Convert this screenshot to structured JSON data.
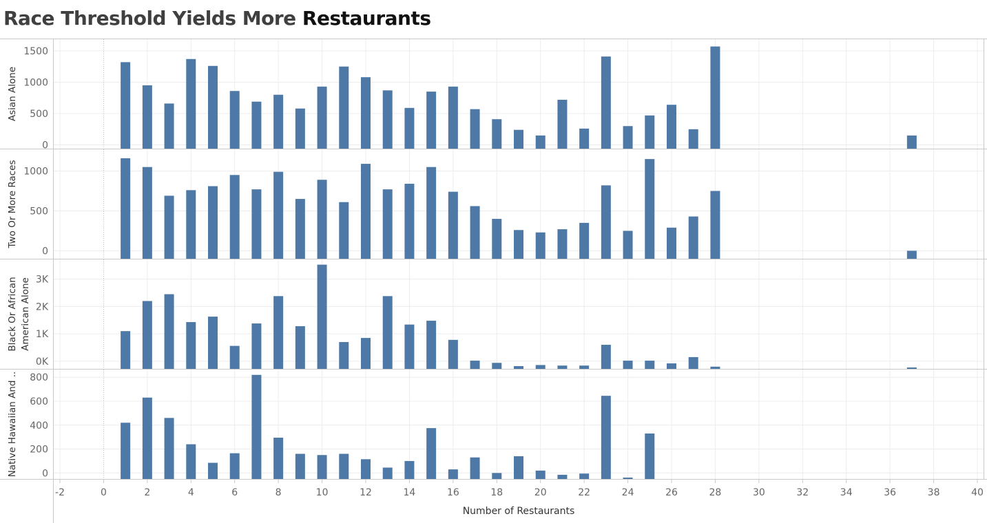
{
  "title": {
    "prefix": "Race Threshold Yields More ",
    "suffix": "Restaurants"
  },
  "colors": {
    "bar": "#4e79a7",
    "grid": "#ececec",
    "frame": "#c8c8c8"
  },
  "chart_data": {
    "type": "bar",
    "title": "Race Threshold Yields More Restaurants",
    "xlabel": "Number of Restaurants",
    "xlim": [
      -2,
      40
    ],
    "x_ticks": [
      "-2",
      "0",
      "2",
      "4",
      "6",
      "8",
      "10",
      "12",
      "14",
      "16",
      "18",
      "20",
      "22",
      "24",
      "26",
      "28",
      "30",
      "32",
      "34",
      "36",
      "38",
      "40"
    ],
    "grid": true,
    "panes": [
      {
        "ylabel": [
          "Asian Alone"
        ],
        "ylim": [
          -60,
          1620
        ],
        "y_ticks": [
          {
            "v": 1500,
            "t": "1500"
          },
          {
            "v": 1000,
            "t": "1000"
          },
          {
            "v": 500,
            "t": "500"
          },
          {
            "v": 0,
            "t": "0"
          }
        ],
        "x": [
          1,
          2,
          3,
          4,
          5,
          6,
          7,
          8,
          9,
          10,
          11,
          12,
          13,
          14,
          15,
          16,
          17,
          18,
          19,
          20,
          21,
          22,
          23,
          24,
          25,
          26,
          27,
          28,
          37
        ],
        "values": [
          1320,
          950,
          660,
          1370,
          1260,
          860,
          690,
          800,
          580,
          930,
          1250,
          1080,
          870,
          590,
          850,
          930,
          570,
          410,
          240,
          150,
          720,
          260,
          1410,
          300,
          470,
          640,
          250,
          1570,
          150
        ]
      },
      {
        "ylabel": [
          "Two Or More Races"
        ],
        "ylim": [
          -100,
          1220
        ],
        "y_ticks": [
          {
            "v": 1000,
            "t": "1000"
          },
          {
            "v": 500,
            "t": "500"
          },
          {
            "v": 0,
            "t": "0"
          }
        ],
        "x": [
          1,
          2,
          3,
          4,
          5,
          6,
          7,
          8,
          9,
          10,
          11,
          12,
          13,
          14,
          15,
          16,
          17,
          18,
          19,
          20,
          21,
          22,
          23,
          24,
          25,
          26,
          27,
          28,
          37
        ],
        "values": [
          1160,
          1050,
          690,
          760,
          810,
          950,
          770,
          990,
          650,
          890,
          610,
          1090,
          770,
          840,
          1050,
          740,
          560,
          400,
          260,
          230,
          270,
          350,
          820,
          250,
          1150,
          290,
          430,
          750,
          0
        ]
      },
      {
        "ylabel": [
          "Black Or African",
          "American Alone"
        ],
        "ylim": [
          -280,
          3570
        ],
        "y_ticks": [
          {
            "v": 3000,
            "t": "3K"
          },
          {
            "v": 2000,
            "t": "2K"
          },
          {
            "v": 1000,
            "t": "1K"
          },
          {
            "v": 0,
            "t": "0K"
          }
        ],
        "x": [
          1,
          2,
          3,
          4,
          5,
          6,
          7,
          8,
          9,
          10,
          11,
          12,
          13,
          14,
          15,
          16,
          17,
          18,
          19,
          20,
          21,
          22,
          23,
          24,
          25,
          26,
          27,
          28,
          37
        ],
        "values": [
          1100,
          2200,
          2450,
          1430,
          1630,
          560,
          1380,
          2380,
          1280,
          3530,
          700,
          850,
          2380,
          1340,
          1480,
          780,
          20,
          -60,
          -180,
          -140,
          -160,
          -160,
          600,
          20,
          20,
          -80,
          150,
          -200,
          -240
        ]
      },
      {
        "ylabel": [
          "Native Hawaiian And .."
        ],
        "ylim": [
          -50,
          830
        ],
        "y_ticks": [
          {
            "v": 800,
            "t": "800"
          },
          {
            "v": 600,
            "t": "600"
          },
          {
            "v": 400,
            "t": "400"
          },
          {
            "v": 200,
            "t": "200"
          },
          {
            "v": 0,
            "t": "0"
          }
        ],
        "x": [
          1,
          2,
          3,
          4,
          5,
          6,
          7,
          8,
          9,
          10,
          11,
          12,
          13,
          14,
          15,
          16,
          17,
          18,
          19,
          20,
          21,
          22,
          23,
          24,
          25
        ],
        "values": [
          420,
          630,
          460,
          240,
          85,
          165,
          820,
          295,
          160,
          150,
          160,
          115,
          45,
          100,
          375,
          30,
          130,
          0,
          140,
          20,
          -15,
          -5,
          645,
          -40,
          330
        ]
      }
    ]
  }
}
